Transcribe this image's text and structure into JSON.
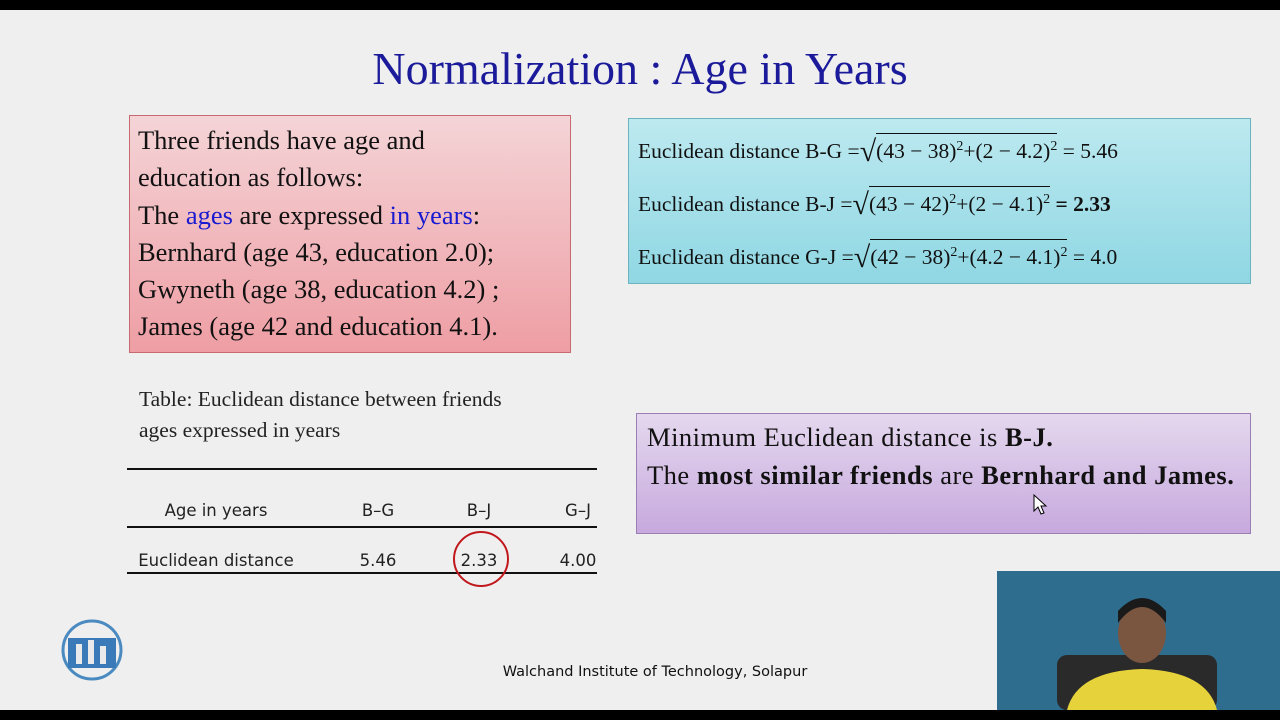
{
  "slide": {
    "title": "Normalization : Age in Years",
    "info": {
      "lines": [
        "Three friends have age and",
        "education as follows:"
      ],
      "intro": [
        "The",
        "ages",
        "are expressed",
        "in years",
        ":"
      ],
      "people": [
        "Bernhard (age 43, education 2.0);",
        "Gwyneth (age 38, education 4.2) ;",
        "James (age 42 and education 4.1)."
      ]
    },
    "formulas": [
      {
        "label": "Euclidean distance B-G =",
        "terms": [
          {
            "base": "(43 − 38)",
            "exp": "2"
          },
          {
            "base": "+(2 − 4.2)",
            "exp": "2"
          }
        ],
        "result": "= 5.46"
      },
      {
        "label": "Euclidean distance B-J =",
        "terms": [
          {
            "base": "(43 − 42)",
            "exp": "2"
          },
          {
            "base": "+(2 − 4.1)",
            "exp": "2"
          }
        ],
        "result": "= 2.33"
      },
      {
        "label": "Euclidean distance G-J =",
        "terms": [
          {
            "base": "(42 − 38)",
            "exp": "2"
          },
          {
            "base": "+(4.2 − 4.1)",
            "exp": "2"
          }
        ],
        "result": "= 4.0"
      }
    ],
    "table": {
      "caption": [
        "Table: Euclidean distance between friends",
        "ages expressed in years"
      ],
      "header": [
        "Age in years",
        "B–G",
        "B–J",
        "G–J"
      ],
      "row": [
        "Euclidean distance",
        "5.46",
        "2.33",
        "4.00"
      ]
    },
    "conclusion": {
      "line1": [
        "Minimum Euclidean distance is",
        "B-J."
      ],
      "line2": [
        "The",
        "most similar friends",
        "are",
        "Bernhard and James."
      ]
    },
    "footer": "Walchand Institute of Technology, Solapur"
  }
}
